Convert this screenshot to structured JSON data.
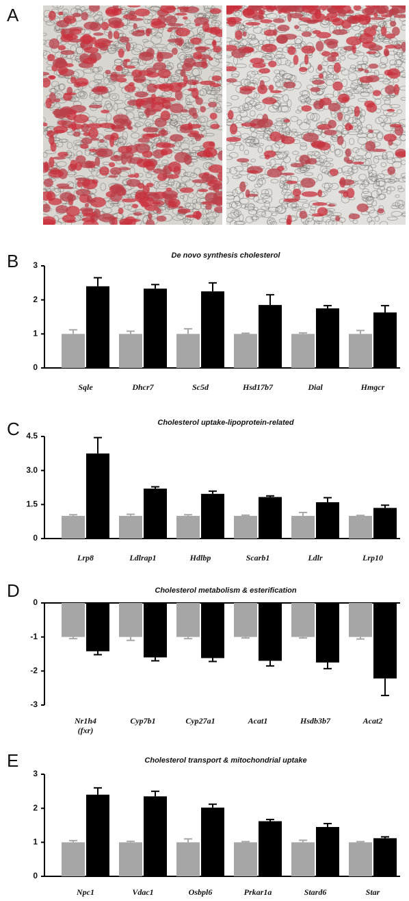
{
  "panel_a": {
    "label": "A"
  },
  "chart_data": [
    {
      "type": "bar",
      "panel_label": "B",
      "title": "De novo synthesis cholesterol",
      "categories": [
        "Sqle",
        "Dhcr7",
        "Sc5d",
        "Hsd17b7",
        "Dial",
        "Hmgcr"
      ],
      "series": [
        {
          "color": "#a6a6a6",
          "values": [
            1,
            1,
            1,
            1,
            1,
            1
          ],
          "errors": [
            0.12,
            0.08,
            0.15,
            0.02,
            0.03,
            0.1
          ]
        },
        {
          "color": "#000000",
          "values": [
            2.4,
            2.33,
            2.25,
            1.85,
            1.75,
            1.63
          ],
          "errors": [
            0.25,
            0.12,
            0.25,
            0.3,
            0.08,
            0.2
          ]
        }
      ],
      "ylim": [
        0,
        3
      ],
      "yticks": [
        0,
        1,
        2,
        3
      ]
    },
    {
      "type": "bar",
      "panel_label": "C",
      "title": "Cholesterol uptake-lipoprotein-related",
      "categories": [
        "Lrp8",
        "Ldlrap1",
        "Hdlbp",
        "Scarb1",
        "Ldlr",
        "Lrp10"
      ],
      "series": [
        {
          "color": "#a6a6a6",
          "values": [
            1,
            1,
            1,
            1,
            1,
            1
          ],
          "errors": [
            0.05,
            0.07,
            0.05,
            0.03,
            0.15,
            0.02
          ]
        },
        {
          "color": "#000000",
          "values": [
            3.75,
            2.2,
            1.97,
            1.83,
            1.6,
            1.35
          ],
          "errors": [
            0.7,
            0.08,
            0.12,
            0.05,
            0.2,
            0.12
          ]
        }
      ],
      "ylim": [
        0,
        4.5
      ],
      "yticks": [
        0,
        1.5,
        {
          "value": 3,
          "label": "3.0"
        },
        4.5
      ]
    },
    {
      "type": "bar",
      "panel_label": "D",
      "title": "Cholesterol metabolism & esterification",
      "categories": [
        "Nr1h4 (fxr)",
        "Cyp7b1",
        "Cyp27a1",
        "Acat1",
        "Hsdb3b7",
        "Acat2"
      ],
      "series": [
        {
          "color": "#a6a6a6",
          "values": [
            -1,
            -1,
            -1,
            -1,
            -1,
            -1
          ],
          "errors": [
            0.05,
            0.1,
            0.05,
            0.03,
            0.03,
            0.06
          ]
        },
        {
          "color": "#000000",
          "values": [
            -1.42,
            -1.6,
            -1.62,
            -1.7,
            -1.75,
            -2.22
          ],
          "errors": [
            0.1,
            0.1,
            0.1,
            0.15,
            0.18,
            0.5
          ]
        }
      ],
      "ylim": [
        -3,
        0
      ],
      "yticks": [
        -3,
        -2,
        -1,
        0
      ]
    },
    {
      "type": "bar",
      "panel_label": "E",
      "title": "Cholesterol transport & mitochondrial uptake",
      "categories": [
        "Npc1",
        "Vdac1",
        "Osbpl6",
        "Prkar1a",
        "Stard6",
        "Star"
      ],
      "series": [
        {
          "color": "#a6a6a6",
          "values": [
            1,
            1,
            1,
            1,
            1,
            1
          ],
          "errors": [
            0.05,
            0.03,
            0.1,
            0.02,
            0.06,
            0.02
          ]
        },
        {
          "color": "#000000",
          "values": [
            2.4,
            2.35,
            2.02,
            1.62,
            1.45,
            1.12
          ],
          "errors": [
            0.2,
            0.15,
            0.1,
            0.05,
            0.1,
            0.04
          ]
        }
      ],
      "ylim": [
        0,
        3
      ],
      "yticks": [
        0,
        1,
        2,
        3
      ]
    }
  ]
}
